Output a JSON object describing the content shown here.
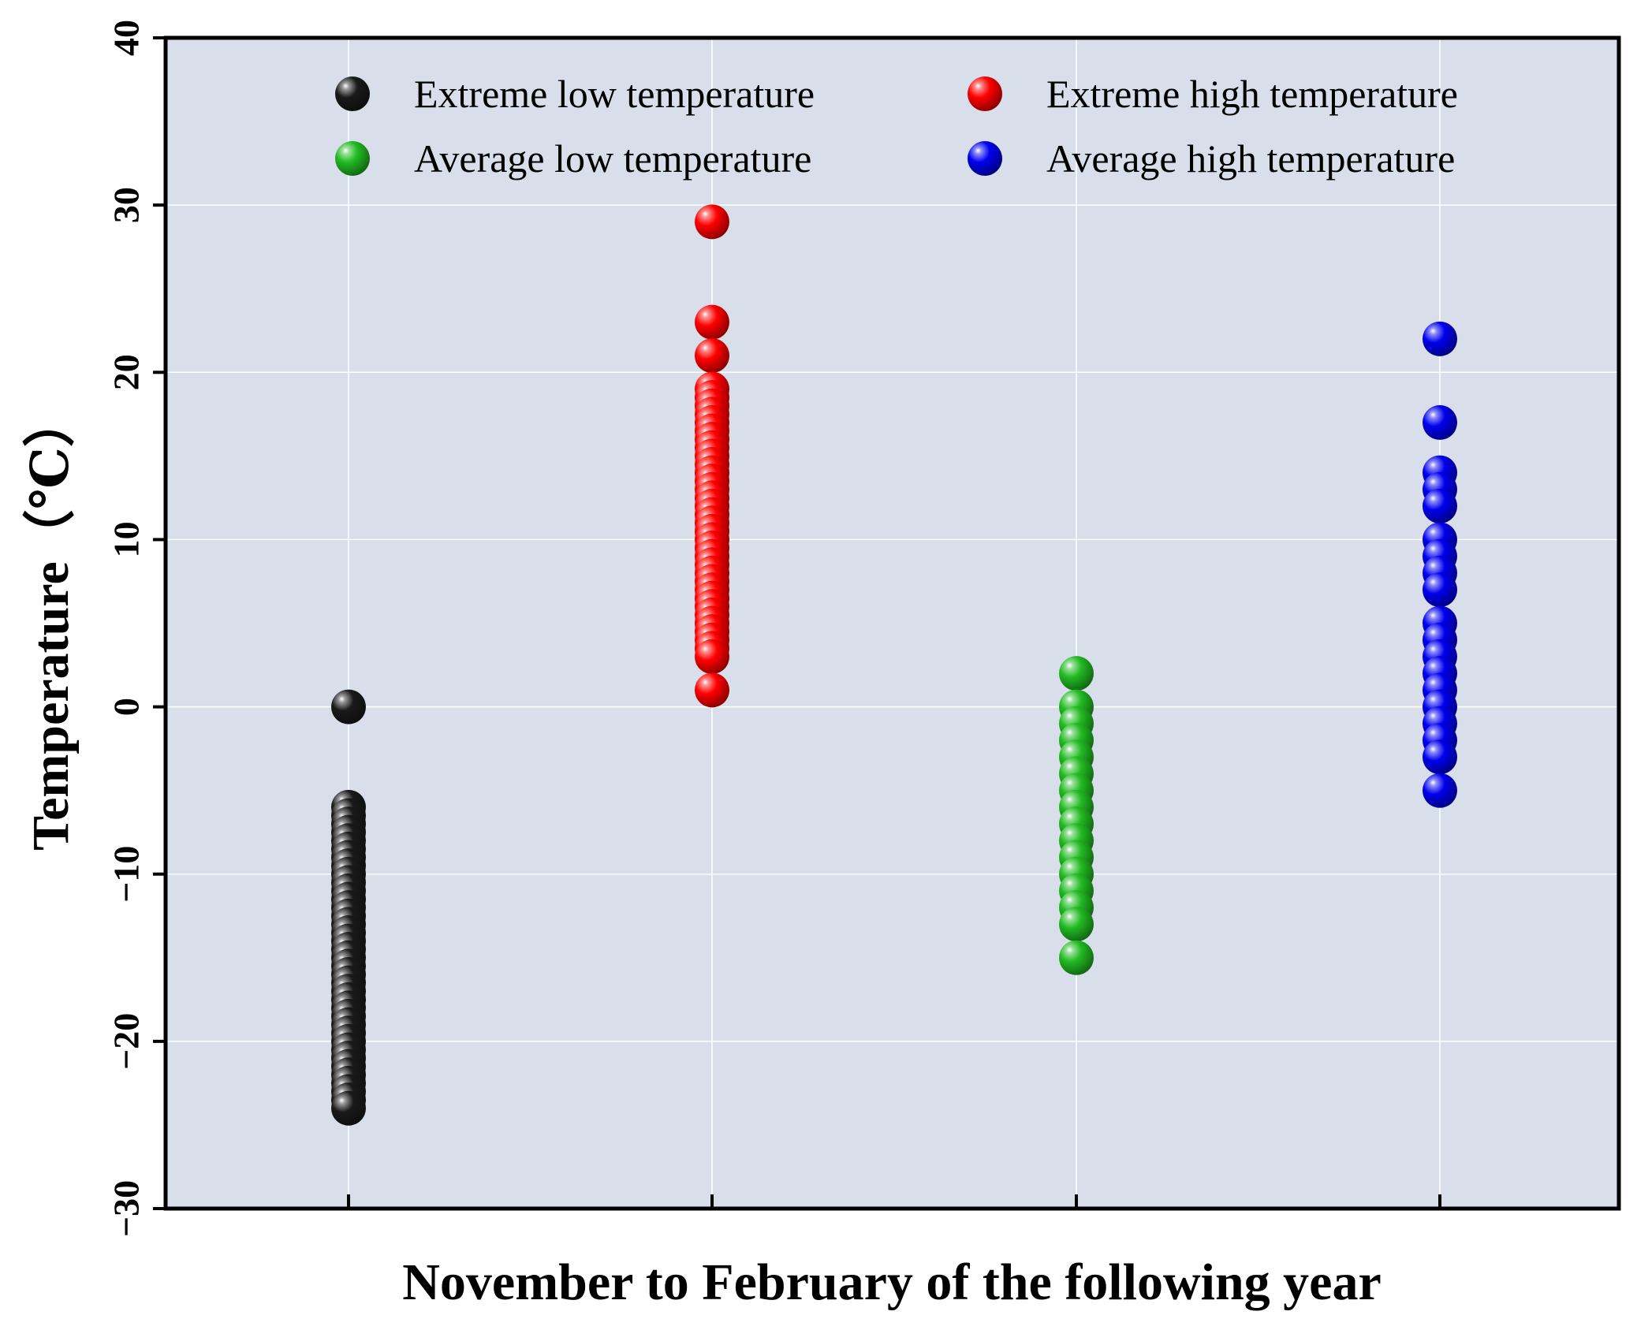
{
  "chart_data": {
    "type": "scatter",
    "title": "",
    "xlabel": "November to February of the following year",
    "ylabel": "Temperature（℃）",
    "ylim": [
      -30,
      40
    ],
    "yticks": [
      -30,
      -20,
      -10,
      0,
      10,
      20,
      30,
      40
    ],
    "ytick_labels": [
      "−30",
      "−20",
      "−10",
      "0",
      "10",
      "20",
      "30",
      "40"
    ],
    "categories": [
      "",
      "",
      "",
      ""
    ],
    "grid": true,
    "legend_position": "top",
    "series": [
      {
        "name": "Extreme low temperature",
        "category_index": 0,
        "color": "#000000",
        "values": [
          0,
          -6,
          -6.5,
          -7,
          -7.5,
          -8,
          -8.5,
          -9,
          -9.5,
          -10,
          -10.5,
          -11,
          -11.5,
          -12,
          -12.5,
          -13,
          -13.5,
          -14,
          -14.5,
          -15,
          -15.5,
          -16,
          -16.5,
          -17,
          -17.5,
          -18,
          -18.5,
          -19,
          -19.5,
          -20,
          -20.5,
          -21,
          -21.5,
          -22,
          -22.5,
          -23,
          -23.5,
          -24
        ]
      },
      {
        "name": "Extreme high temperature",
        "category_index": 1,
        "color": "#ff0000",
        "values": [
          29,
          23,
          21,
          19,
          18.5,
          18,
          17.5,
          17,
          16.5,
          16,
          15.5,
          15,
          14.5,
          14,
          13.5,
          13,
          12.5,
          12,
          11.5,
          11,
          10.5,
          10,
          9.5,
          9,
          8.5,
          8,
          7.5,
          7,
          6.5,
          6,
          5.5,
          5,
          4.5,
          4,
          3.5,
          3,
          1
        ]
      },
      {
        "name": "Average low temperature",
        "category_index": 2,
        "color": "#22bb22",
        "values": [
          2,
          0,
          -1,
          -2,
          -3,
          -4,
          -5,
          -6,
          -7,
          -8,
          -9,
          -10,
          -11,
          -12,
          -13,
          -15
        ]
      },
      {
        "name": "Average high temperature",
        "category_index": 3,
        "color": "#0000ee",
        "values": [
          22,
          17,
          14,
          13,
          12,
          10,
          9,
          8,
          7,
          5,
          4,
          3,
          2,
          1,
          0,
          -1,
          -2,
          -3,
          -5
        ]
      }
    ]
  }
}
